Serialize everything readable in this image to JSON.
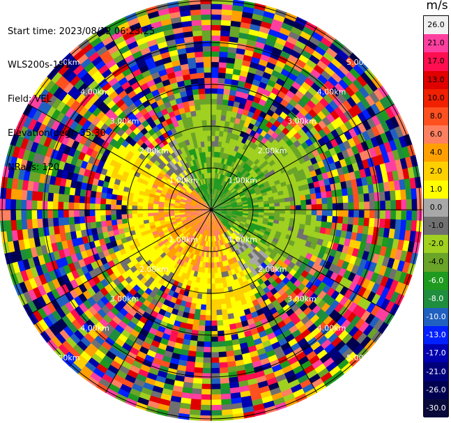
{
  "info": {
    "start_time": "Start time: 2023/08/12 06:23:25",
    "instrument": "WLS200s-181",
    "field": "Field: VEL",
    "elevation": "Elevation(deg): 35.30",
    "nrays": "NRays: 120"
  },
  "colorbar": {
    "unit": "m/s",
    "labels": [
      "26.0",
      "21.0",
      "17.0",
      "13.0",
      "10.0",
      "8.0",
      "6.0",
      "4.0",
      "2.0",
      "1.0",
      "0.0",
      "-1.0",
      "-2.0",
      "-4.0",
      "-6.0",
      "-8.0",
      "-10.0",
      "-13.0",
      "-17.0",
      "-21.0",
      "-26.0",
      "-30.0"
    ],
    "colors": [
      "#f0f0f0",
      "#ff3fa0",
      "#ff0f50",
      "#e00000",
      "#f02000",
      "#ff5020",
      "#ff8060",
      "#ffa000",
      "#ffd000",
      "#ffff00",
      "#a8a8a8",
      "#707070",
      "#a0d020",
      "#6aa428",
      "#1e9a1e",
      "#1e8e3e",
      "#2060c0",
      "#0020ff",
      "#0000b0",
      "#00007a",
      "#000050",
      "#0a0a3a"
    ]
  },
  "rings": {
    "inner_labels": [
      "1.00km",
      "1.00km",
      "1.00km",
      "1.00km"
    ],
    "second_labels": [
      "2.00km",
      "2.00km",
      "2.00km",
      "2.00km"
    ],
    "third_labels": [
      "3.00km",
      "3.00km",
      "3.00km",
      "3.00km"
    ],
    "fourth_labels": [
      "4.00km",
      "4.00km",
      "4.00km",
      "4.00km"
    ],
    "outer_labels": [
      "5.00km",
      "5.00km",
      "5.00km",
      "5.00km"
    ]
  }
}
